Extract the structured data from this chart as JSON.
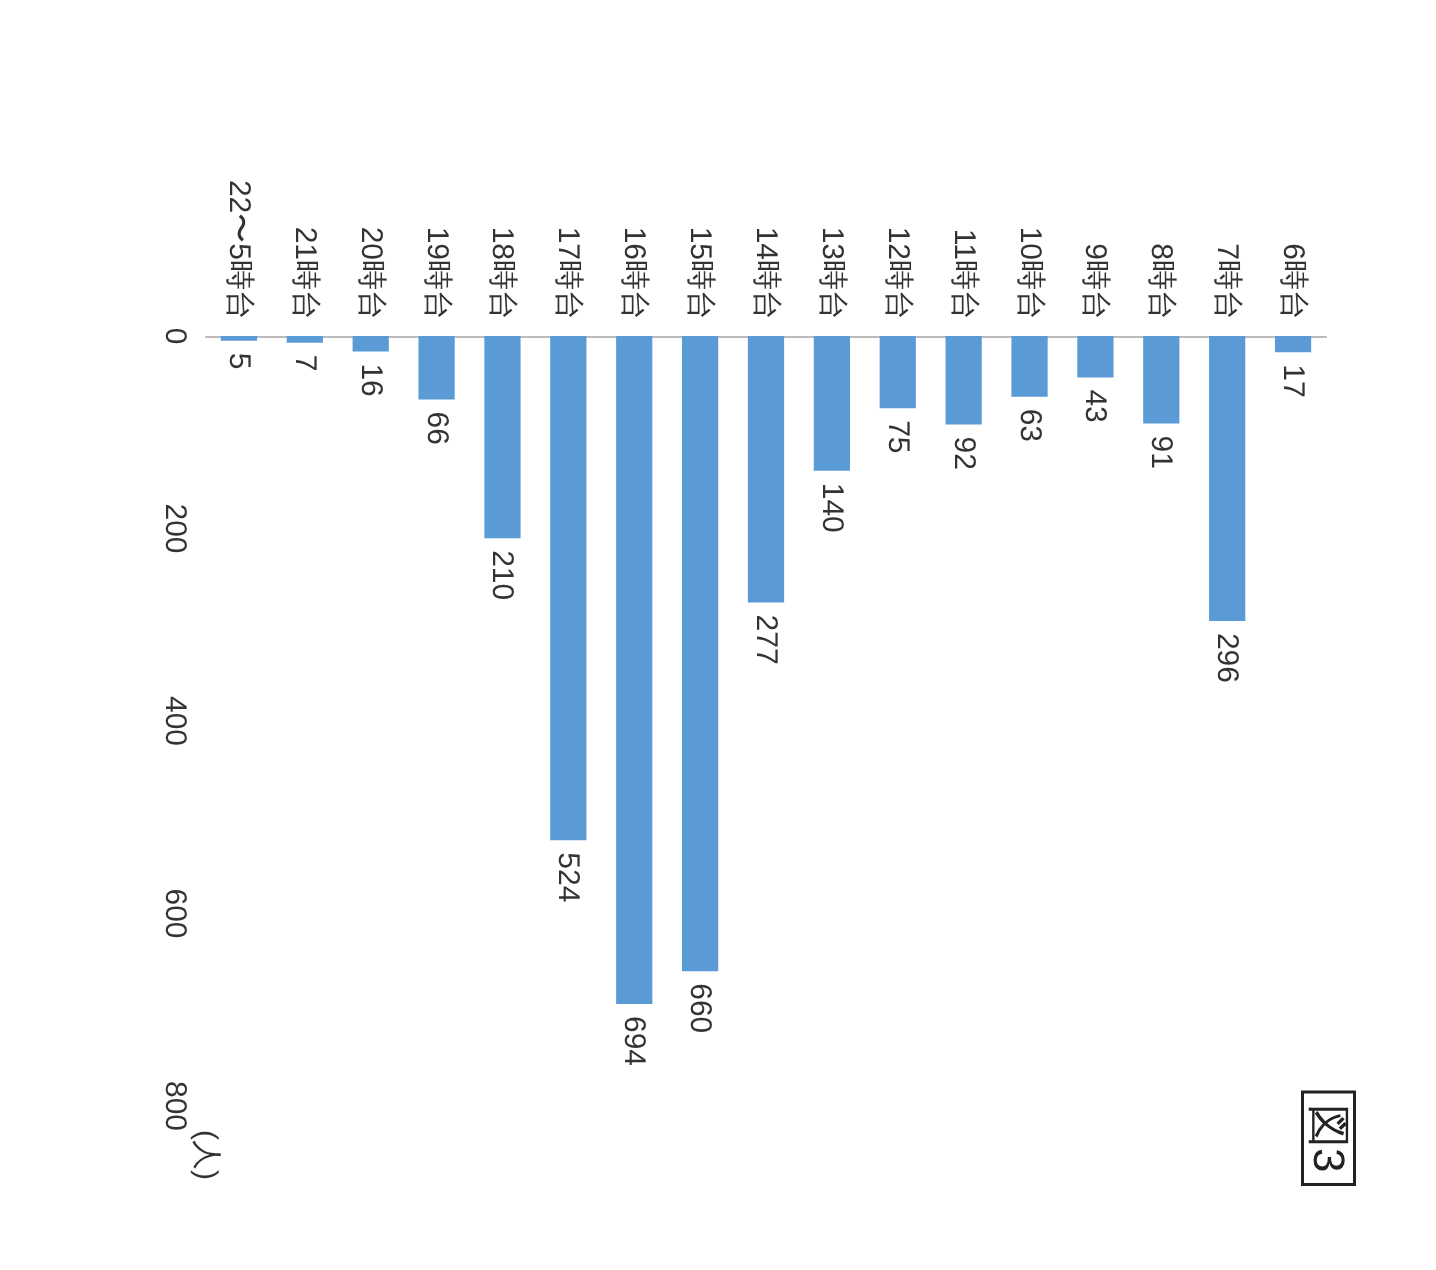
{
  "chart_data": {
    "type": "bar",
    "title": "図3",
    "ylabel": "(人)",
    "categories": [
      "22〜5時台",
      "21時台",
      "20時台",
      "19時台",
      "18時台",
      "17時台",
      "16時台",
      "15時台",
      "14時台",
      "13時台",
      "12時台",
      "11時台",
      "10時台",
      "9時台",
      "8時台",
      "7時台",
      "6時台"
    ],
    "values": [
      5,
      7,
      16,
      66,
      210,
      524,
      694,
      660,
      277,
      140,
      75,
      92,
      63,
      43,
      91,
      296,
      17
    ],
    "color": "#5b9bd5",
    "ylim": [
      800,
      0
    ],
    "yticks": [
      0,
      200,
      400,
      600,
      800
    ],
    "data_labels": true
  }
}
